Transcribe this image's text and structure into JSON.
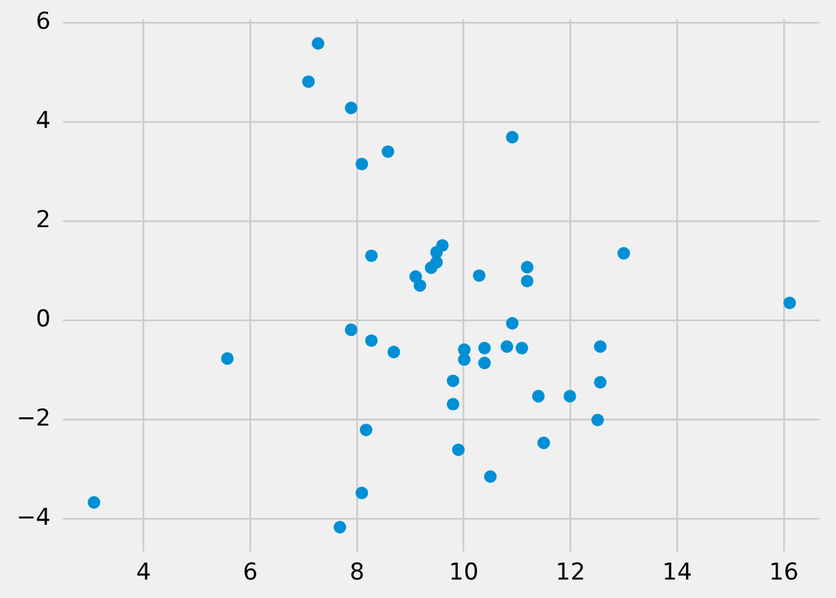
{
  "chart_data": {
    "type": "scatter",
    "x": [
      3.07,
      5.57,
      7.09,
      7.27,
      7.89,
      8.09,
      8.58,
      8.27,
      7.89,
      8.27,
      8.69,
      8.17,
      8.09,
      7.68,
      9.6,
      9.49,
      9.49,
      9.39,
      9.1,
      9.18,
      10.29,
      11.19,
      11.19,
      10.91,
      10.01,
      10.01,
      10.39,
      10.39,
      10.81,
      11.09,
      12.56,
      9.8,
      9.8,
      11.4,
      11.99,
      12.56,
      12.51,
      11.5,
      9.9,
      10.5,
      16.11,
      10.91,
      13.0
    ],
    "values": [
      -3.67,
      -0.77,
      4.81,
      5.58,
      4.28,
      3.15,
      3.4,
      1.3,
      -0.19,
      -0.41,
      -0.64,
      -2.21,
      -3.48,
      -4.17,
      1.51,
      1.37,
      1.17,
      1.06,
      0.88,
      0.7,
      0.9,
      1.07,
      0.79,
      -0.06,
      -0.59,
      -0.79,
      -0.56,
      -0.86,
      -0.53,
      -0.56,
      -0.53,
      -1.22,
      -1.69,
      -1.53,
      -1.53,
      -1.25,
      -2.01,
      -2.47,
      -2.61,
      -3.15,
      0.35,
      3.69,
      1.35
    ],
    "color": "#008fd5",
    "xlim": [
      2.49,
      16.67
    ],
    "ylim": [
      -4.66,
      6.07
    ],
    "xticks": [
      4,
      6,
      8,
      10,
      12,
      14,
      16
    ],
    "yticks": [
      {
        "value": -4,
        "label": "−4"
      },
      {
        "value": -2,
        "label": "−2"
      },
      0,
      2,
      4,
      6
    ],
    "grid": true,
    "marker": "circle"
  }
}
